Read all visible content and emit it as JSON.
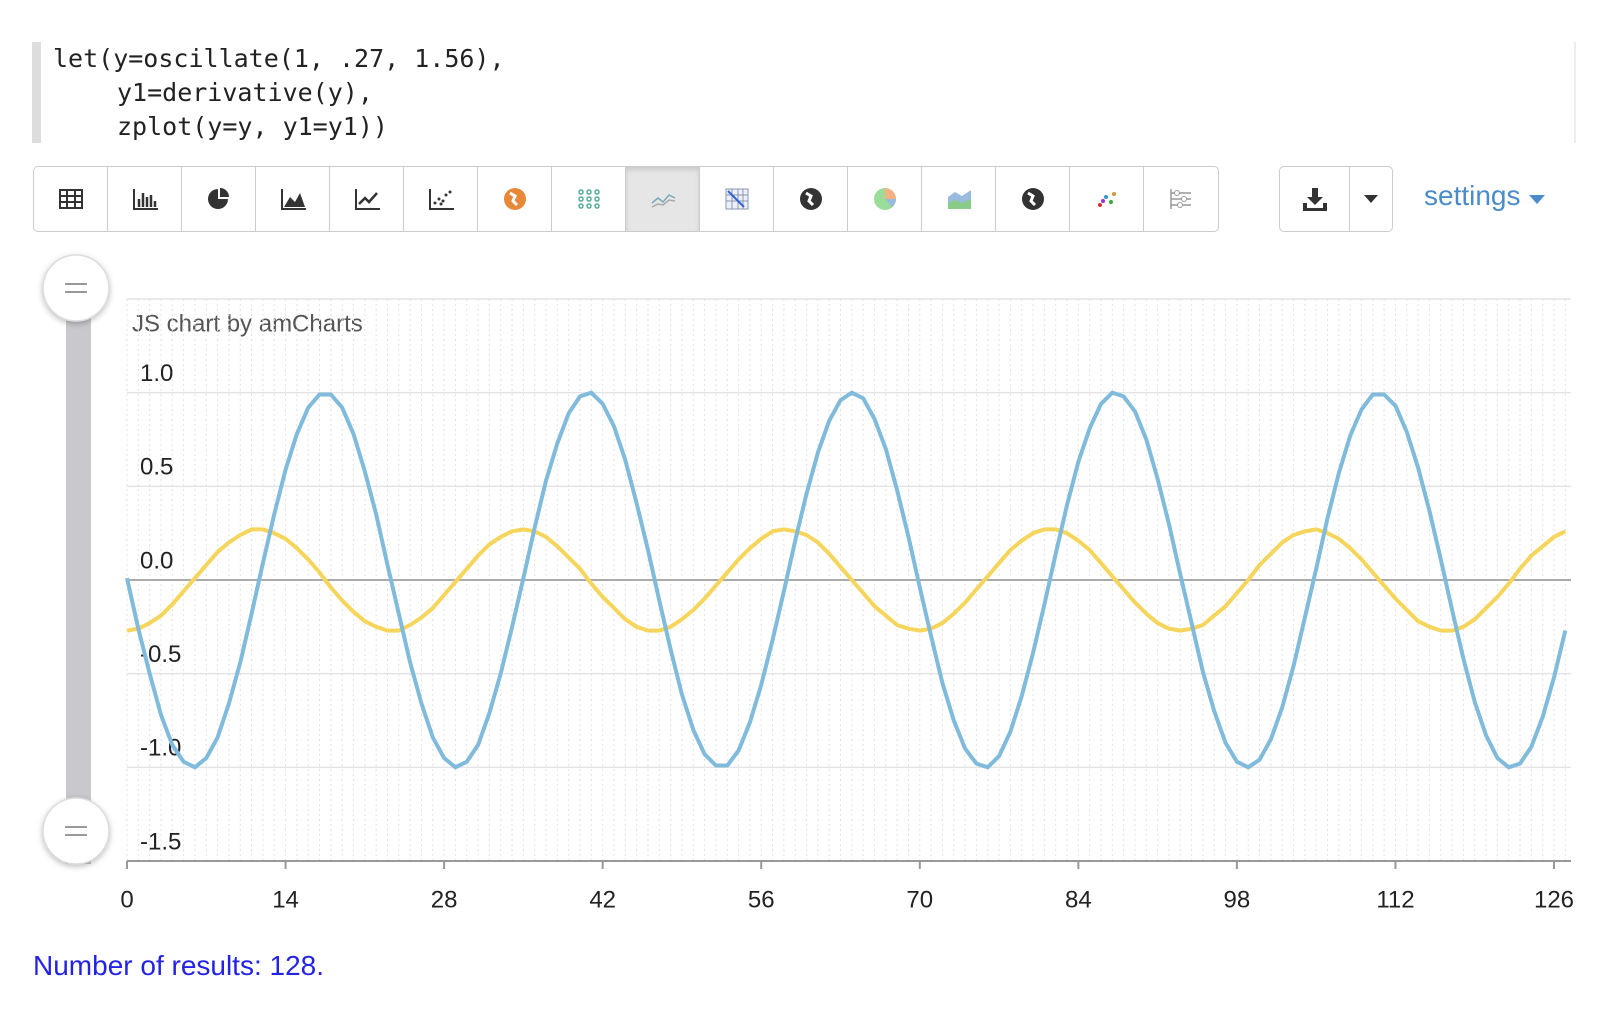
{
  "code": [
    "let(y=oscillate(1, .27, 1.56),",
    "y1=derivative(y),",
    "zplot(y=y, y1=y1))"
  ],
  "toolbar": {
    "settings": "settings"
  },
  "chart_data": {
    "type": "line",
    "credit": "JS chart by amCharts",
    "x": [
      0,
      1,
      2,
      3,
      4,
      5,
      6,
      7,
      8,
      9,
      10,
      11,
      12,
      13,
      14,
      15,
      16,
      17,
      18,
      19,
      20,
      21,
      22,
      23,
      24,
      25,
      26,
      27,
      28,
      29,
      30,
      31,
      32,
      33,
      34,
      35,
      36,
      37,
      38,
      39,
      40,
      41,
      42,
      43,
      44,
      45,
      46,
      47,
      48,
      49,
      50,
      51,
      52,
      53,
      54,
      55,
      56,
      57,
      58,
      59,
      60,
      61,
      62,
      63,
      64,
      65,
      66,
      67,
      68,
      69,
      70,
      71,
      72,
      73,
      74,
      75,
      76,
      77,
      78,
      79,
      80,
      81,
      82,
      83,
      84,
      85,
      86,
      87,
      88,
      89,
      90,
      91,
      92,
      93,
      94,
      95,
      96,
      97,
      98,
      99,
      100,
      101,
      102,
      103,
      104,
      105,
      106,
      107,
      108,
      109,
      110,
      111,
      112,
      113,
      114,
      115,
      116,
      117,
      118,
      119,
      120,
      121,
      122,
      123,
      124,
      125,
      126,
      127
    ],
    "series": [
      {
        "color": "#80bbdb",
        "values": [
          0.01,
          -0.26,
          -0.5,
          -0.72,
          -0.88,
          -0.97,
          -1.0,
          -0.95,
          -0.84,
          -0.66,
          -0.44,
          -0.18,
          0.09,
          0.35,
          0.59,
          0.78,
          0.92,
          0.99,
          0.99,
          0.92,
          0.78,
          0.58,
          0.35,
          0.08,
          -0.18,
          -0.44,
          -0.66,
          -0.84,
          -0.95,
          -1.0,
          -0.97,
          -0.88,
          -0.71,
          -0.5,
          -0.25,
          0.01,
          0.28,
          0.53,
          0.73,
          0.89,
          0.98,
          1.0,
          0.94,
          0.82,
          0.64,
          0.41,
          0.16,
          -0.11,
          -0.37,
          -0.61,
          -0.8,
          -0.93,
          -0.99,
          -0.99,
          -0.91,
          -0.76,
          -0.56,
          -0.32,
          -0.06,
          0.21,
          0.46,
          0.68,
          0.85,
          0.96,
          1.0,
          0.97,
          0.86,
          0.7,
          0.48,
          0.23,
          -0.04,
          -0.3,
          -0.55,
          -0.75,
          -0.9,
          -0.98,
          -1.0,
          -0.94,
          -0.81,
          -0.62,
          -0.39,
          -0.13,
          0.14,
          0.4,
          0.63,
          0.81,
          0.94,
          1.0,
          0.98,
          0.9,
          0.75,
          0.54,
          0.3,
          0.03,
          -0.23,
          -0.49,
          -0.7,
          -0.87,
          -0.97,
          -1.0,
          -0.96,
          -0.85,
          -0.68,
          -0.46,
          -0.2,
          0.06,
          0.33,
          0.57,
          0.77,
          0.91,
          0.99,
          0.99,
          0.93,
          0.79,
          0.6,
          0.37,
          0.11,
          -0.16,
          -0.42,
          -0.65,
          -0.83,
          -0.95,
          -1.0,
          -0.98,
          -0.89,
          -0.73,
          -0.52,
          -0.27
        ]
      },
      {
        "color": "#f6d55c",
        "values": [
          -0.27,
          -0.26,
          -0.23,
          -0.19,
          -0.13,
          -0.06,
          0.01,
          0.08,
          0.15,
          0.2,
          0.24,
          0.27,
          0.27,
          0.25,
          0.22,
          0.17,
          0.11,
          0.04,
          -0.04,
          -0.11,
          -0.17,
          -0.22,
          -0.25,
          -0.27,
          -0.27,
          -0.24,
          -0.2,
          -0.15,
          -0.08,
          -0.01,
          0.06,
          0.13,
          0.19,
          0.23,
          0.26,
          0.27,
          0.26,
          0.23,
          0.18,
          0.12,
          0.06,
          -0.02,
          -0.09,
          -0.15,
          -0.21,
          -0.25,
          -0.27,
          -0.27,
          -0.25,
          -0.21,
          -0.16,
          -0.1,
          -0.03,
          0.04,
          0.11,
          0.17,
          0.22,
          0.26,
          0.27,
          0.26,
          0.24,
          0.2,
          0.14,
          0.07,
          0.0,
          -0.07,
          -0.14,
          -0.19,
          -0.24,
          -0.26,
          -0.27,
          -0.26,
          -0.23,
          -0.18,
          -0.12,
          -0.05,
          0.02,
          0.09,
          0.16,
          0.21,
          0.25,
          0.27,
          0.27,
          0.25,
          0.21,
          0.16,
          0.09,
          0.02,
          -0.05,
          -0.12,
          -0.18,
          -0.23,
          -0.26,
          -0.27,
          -0.26,
          -0.24,
          -0.19,
          -0.14,
          -0.07,
          0.0,
          0.08,
          0.14,
          0.2,
          0.24,
          0.26,
          0.27,
          0.25,
          0.22,
          0.17,
          0.11,
          0.04,
          -0.03,
          -0.1,
          -0.16,
          -0.22,
          -0.25,
          -0.27,
          -0.27,
          -0.25,
          -0.21,
          -0.15,
          -0.09,
          -0.02,
          0.06,
          0.13,
          0.18,
          0.23,
          0.26
        ]
      }
    ],
    "xlim": [
      0,
      127.5
    ],
    "xticks": [
      0,
      14,
      28,
      42,
      56,
      70,
      84,
      98,
      112,
      126
    ],
    "ylim": [
      -1.5,
      1.5
    ],
    "yticks": [
      {
        "value": 1,
        "label": "1.0"
      },
      0.5,
      {
        "value": 0,
        "label": "0.0"
      },
      -0.5,
      {
        "value": -1,
        "label": "-1.0"
      },
      -1.5
    ],
    "grid": true
  },
  "footer": "Number of results: 128."
}
